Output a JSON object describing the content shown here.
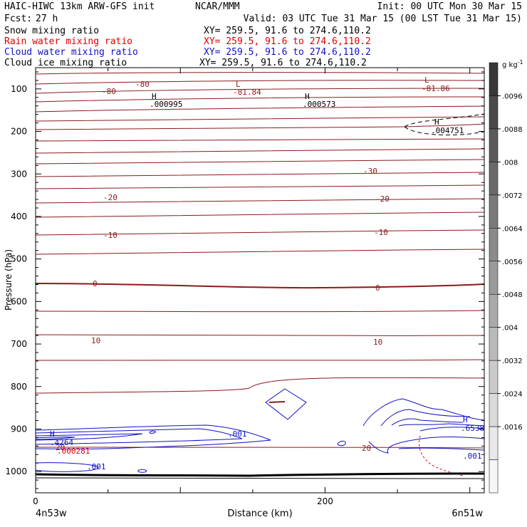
{
  "header": {
    "model": "HAIC-HIWC 13km ARW-GFS init",
    "org": "NCAR/MMM",
    "init": "Init: 00 UTC Mon 30 Mar 15",
    "fcst_label": "Fcst:",
    "fcst_value": "27 h",
    "valid": "Valid: 03 UTC Tue 31 Mar 15 (00 LST Tue 31 Mar 15)",
    "fields": [
      {
        "name": "Snow mixing ratio",
        "xy": "XY= 259.5, 91.6 to 274.6,110.2",
        "color": "#000000"
      },
      {
        "name": "Rain water mixing ratio",
        "xy": "XY= 259.5, 91.6 to 274.6,110.2",
        "color": "#e00000"
      },
      {
        "name": "Cloud water mixing ratio",
        "xy": "XY= 259.5, 91.6 to 274.6,110.2",
        "color": "#1010c8"
      },
      {
        "name": "Cloud ice mixing ratio",
        "xy": "XY= 259.5, 91.6 to 274.6,110.2",
        "color": "#000000"
      }
    ]
  },
  "chart_data": {
    "type": "cross-section contour",
    "xlabel": "Distance (km)",
    "ylabel": "Pressure (hPa)",
    "x_ticks": [
      0,
      200
    ],
    "x_range_km": [
      0,
      310
    ],
    "y_ticks": [
      100,
      200,
      300,
      400,
      500,
      600,
      700,
      800,
      900,
      1000
    ],
    "y_range_hpa": [
      50,
      1050
    ],
    "x_endpoints": {
      "left": "4n53w",
      "right": "6n51w"
    },
    "colorbar": {
      "unit": "g kg",
      "unit_exp": "-1",
      "ticks": [
        ".0096",
        ".0088",
        ".008",
        ".0072",
        ".0064",
        ".0056",
        ".0048",
        ".004",
        ".0032",
        ".0024",
        ".0016"
      ],
      "shades": [
        "#383838",
        "#4a4a4a",
        "#5a5a5a",
        "#6a6a6a",
        "#7a7a7a",
        "#8a8a8a",
        "#9a9a9a",
        "#aaaaaa",
        "#bababa",
        "#cacaca",
        "#dadada",
        "#e8e8e8",
        "#f6f6f6"
      ]
    },
    "temperature_contour_labels": [
      "-80",
      "-80",
      "-30",
      "-20",
      "-20",
      "-10",
      "-10",
      "0",
      "0",
      "10",
      "10",
      "20",
      "20"
    ],
    "extrema_labels": [
      {
        "mark": "L",
        "value": "-81.84",
        "color": "#8b1a1a"
      },
      {
        "mark": "L",
        "value": "-81.86",
        "color": "#8b1a1a"
      },
      {
        "mark": "H",
        "value": ".000995",
        "color": "#000000"
      },
      {
        "mark": "H",
        "value": ".000573",
        "color": "#000000"
      },
      {
        "mark": "H",
        "value": ".004751",
        "color": "#000000"
      },
      {
        "mark": "H",
        "value": ".4264",
        "color": "#1010c8"
      },
      {
        "mark": "",
        "value": ".000281",
        "color": "#e00000"
      },
      {
        "mark": "H",
        "value": ".6538",
        "color": "#1010c8"
      }
    ],
    "cloud_water_labels": [
      ".001",
      ".001",
      ".001"
    ],
    "colors": {
      "temperature": "#8b1a1a",
      "cloud_water": "#1010c8",
      "rain": "#e00000",
      "terrain": "#000000"
    }
  }
}
